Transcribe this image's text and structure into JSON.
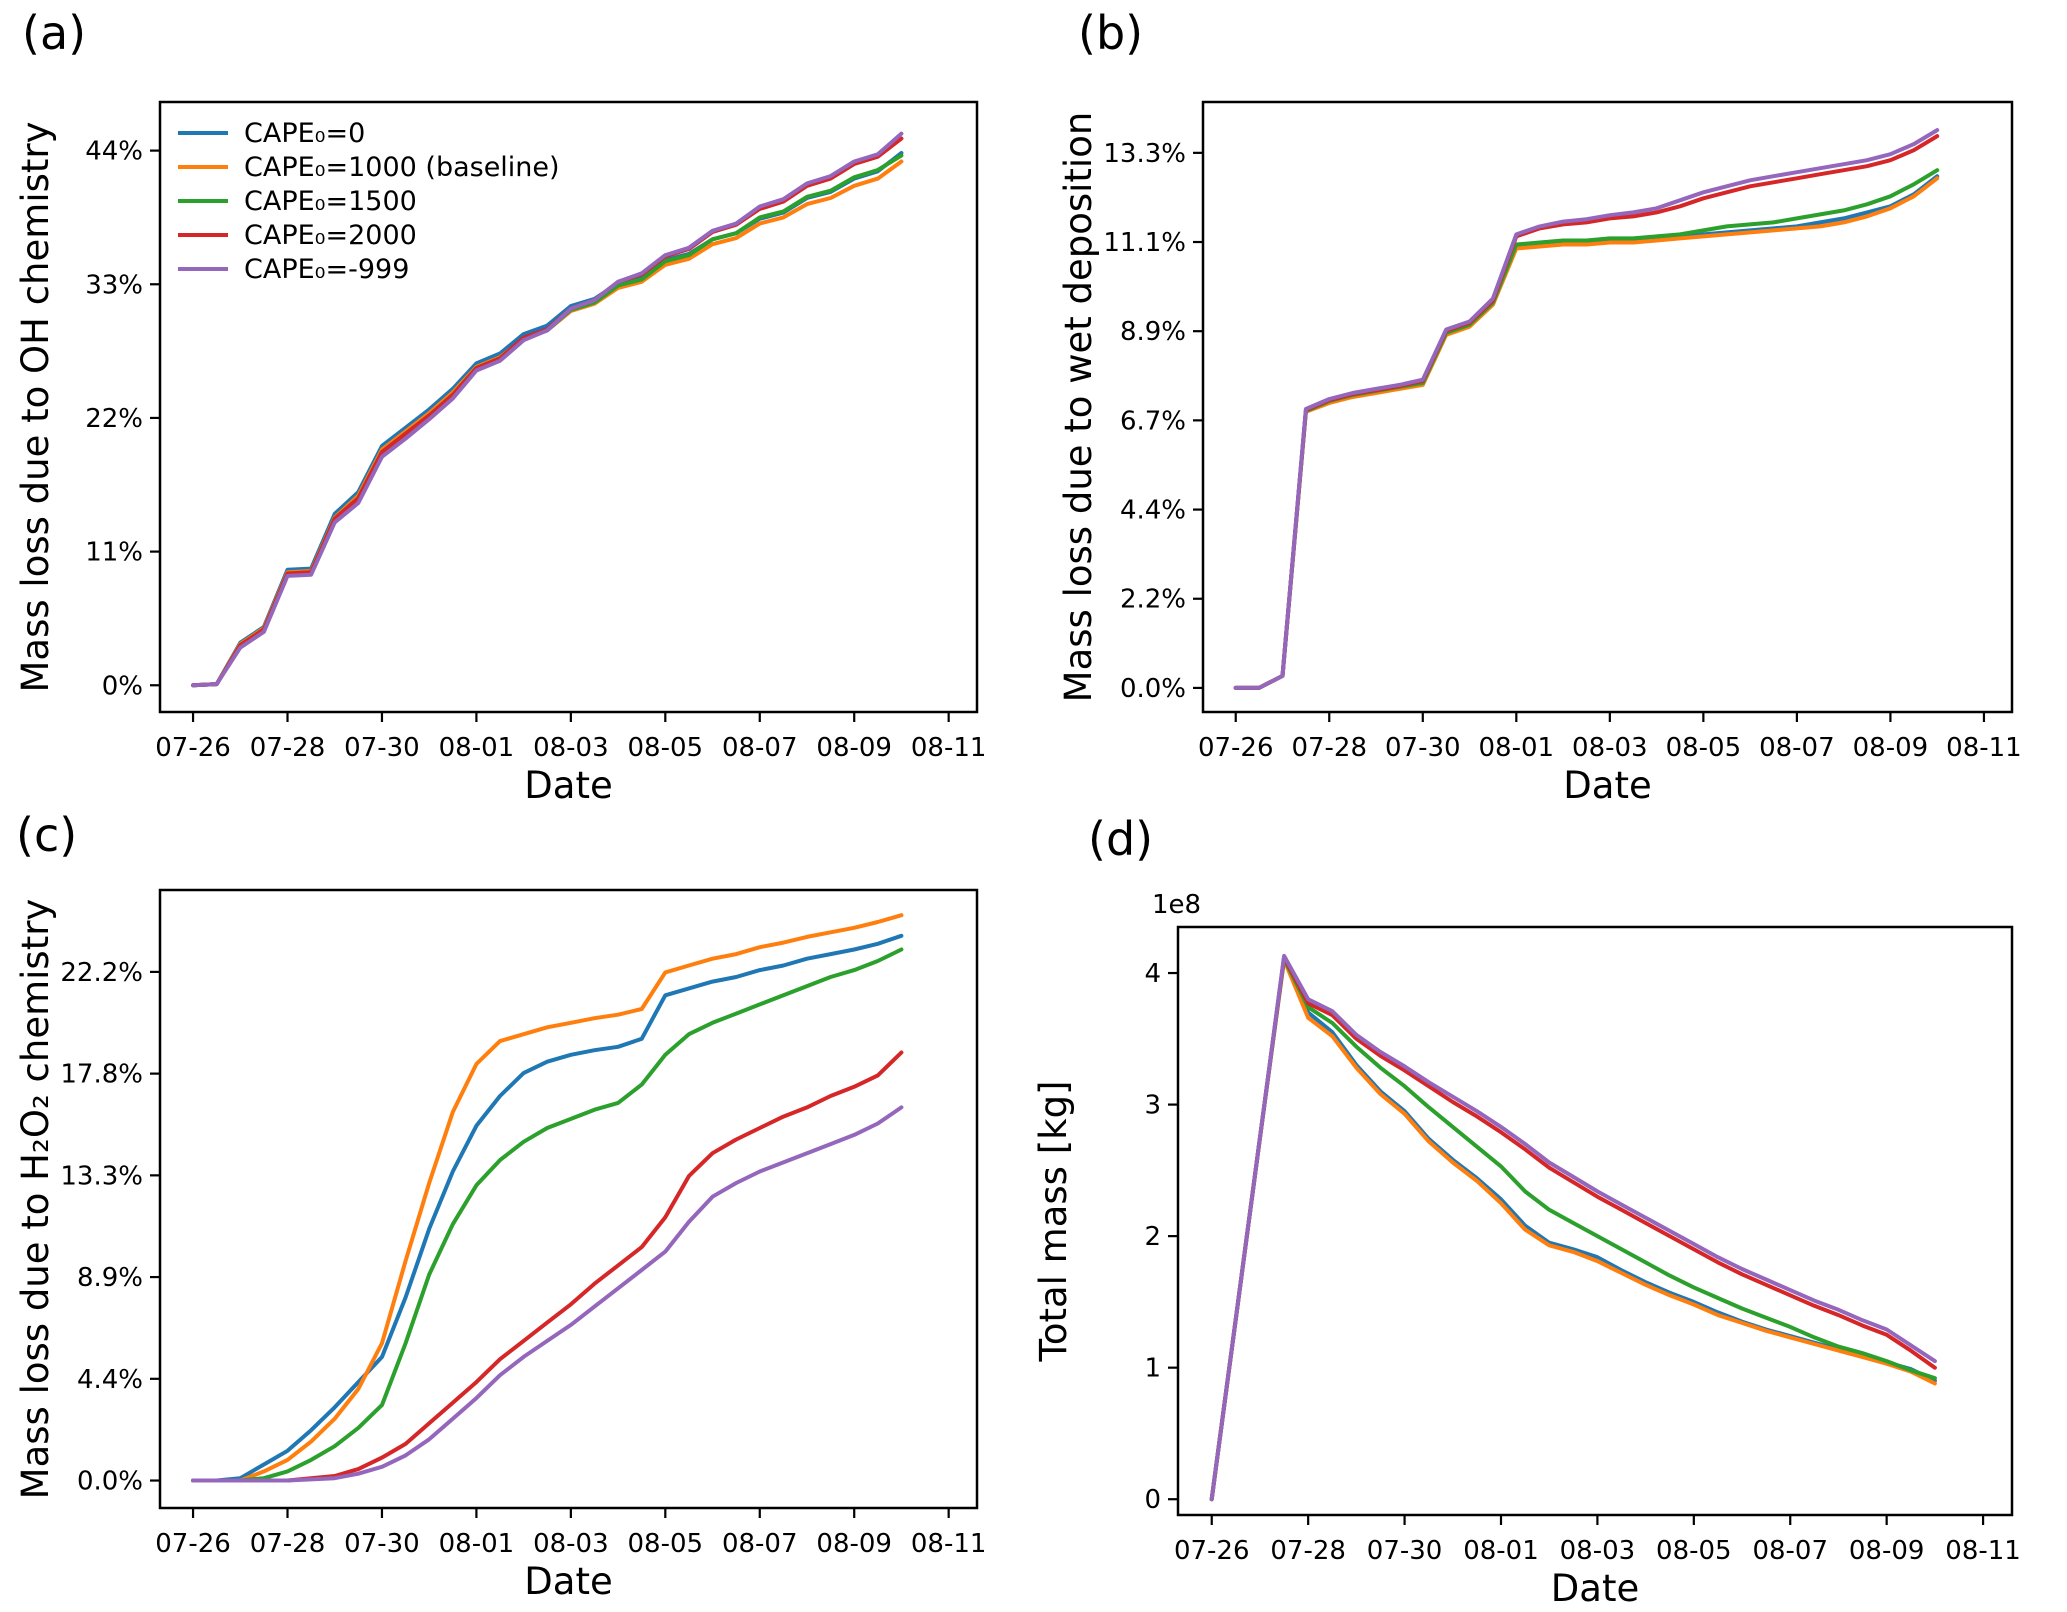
{
  "colors": {
    "blue": "#1f77b4",
    "orange": "#ff7f0e",
    "green": "#2ca02c",
    "red": "#d62728",
    "purple": "#9467bd",
    "axis": "#000000",
    "background": "#ffffff"
  },
  "chart_data": {
    "type": "line",
    "xlabel": "Date",
    "x_units": "days since 07-26",
    "x": [
      0,
      0.5,
      1,
      1.5,
      2,
      2.5,
      3,
      3.5,
      4,
      4.5,
      5,
      5.5,
      6,
      6.5,
      7,
      7.5,
      8,
      8.5,
      9,
      9.5,
      10,
      10.5,
      11,
      11.5,
      12,
      12.5,
      13,
      13.5,
      14,
      14.5,
      15
    ],
    "xlim": [
      -0.7,
      16.6
    ],
    "x_ticks": {
      "values": [
        0,
        2,
        4,
        6,
        8,
        10,
        12,
        14,
        16
      ],
      "labels": [
        "07-26",
        "07-28",
        "07-30",
        "08-01",
        "08-03",
        "08-05",
        "08-07",
        "08-09",
        "08-11"
      ]
    },
    "legend_entries": [
      "CAPE₀=0",
      "CAPE₀=1000 (baseline)",
      "CAPE₀=1500",
      "CAPE₀=2000",
      "CAPE₀=-999"
    ],
    "panels": [
      {
        "tag": "(a)",
        "ylabel": "Mass loss due to OH chemistry",
        "xlabel": "Date",
        "ylim": [
          -2.2,
          48
        ],
        "legend": true,
        "grid": false,
        "y_ticks": {
          "values": [
            0,
            11,
            22,
            33,
            44
          ],
          "labels": [
            "0%",
            "11%",
            "22%",
            "33%",
            "44%"
          ]
        },
        "series": [
          {
            "name": "CAPE₀=0",
            "color": "#1f77b4",
            "values": [
              0,
              0.1,
              3.5,
              4.8,
              9.5,
              9.6,
              14.1,
              15.9,
              19.7,
              21.2,
              22.7,
              24.4,
              26.5,
              27.3,
              28.9,
              29.6,
              31.2,
              31.8,
              33.1,
              33.6,
              35.0,
              35.5,
              36.7,
              37.2,
              38.4,
              38.9,
              40.1,
              40.6,
              41.7,
              42.3,
              43.8
            ]
          },
          {
            "name": "CAPE₀=1000 (baseline)",
            "color": "#ff7f0e",
            "values": [
              0,
              0.1,
              3.4,
              4.7,
              9.3,
              9.4,
              13.8,
              15.6,
              19.4,
              20.9,
              22.4,
              24.1,
              26.2,
              27.0,
              28.5,
              29.2,
              30.8,
              31.4,
              32.7,
              33.2,
              34.6,
              35.1,
              36.3,
              36.8,
              38.0,
              38.5,
              39.6,
              40.1,
              41.1,
              41.7,
              43.1
            ]
          },
          {
            "name": "CAPE₀=1500",
            "color": "#2ca02c",
            "values": [
              0,
              0.1,
              3.3,
              4.6,
              9.2,
              9.3,
              13.7,
              15.4,
              19.2,
              20.7,
              22.2,
              23.9,
              26.1,
              26.9,
              28.5,
              29.2,
              30.9,
              31.5,
              32.9,
              33.4,
              34.9,
              35.4,
              36.7,
              37.2,
              38.5,
              39.0,
              40.2,
              40.7,
              41.8,
              42.4,
              43.6
            ]
          },
          {
            "name": "CAPE₀=2000",
            "color": "#d62728",
            "values": [
              0,
              0.1,
              3.3,
              4.6,
              9.2,
              9.3,
              13.7,
              15.4,
              19.2,
              20.7,
              22.2,
              23.9,
              26.1,
              26.9,
              28.6,
              29.3,
              31.0,
              31.7,
              33.2,
              33.8,
              35.3,
              35.9,
              37.3,
              37.9,
              39.2,
              39.8,
              41.1,
              41.7,
              42.9,
              43.5,
              45.0
            ]
          },
          {
            "name": "CAPE₀=-999",
            "color": "#9467bd",
            "values": [
              0,
              0.1,
              3.1,
              4.4,
              9.0,
              9.1,
              13.4,
              15.0,
              18.8,
              20.3,
              21.9,
              23.6,
              25.9,
              26.7,
              28.4,
              29.2,
              31.0,
              31.7,
              33.2,
              33.9,
              35.4,
              36.0,
              37.4,
              38.0,
              39.4,
              40.0,
              41.3,
              41.9,
              43.1,
              43.7,
              45.4
            ]
          }
        ]
      },
      {
        "tag": "(b)",
        "ylabel": "Mass loss due to wet deposition",
        "xlabel": "Date",
        "ylim": [
          -0.6,
          14.6
        ],
        "legend": false,
        "grid": false,
        "y_ticks": {
          "values": [
            0,
            2.222,
            4.444,
            6.667,
            8.889,
            11.111,
            13.333
          ],
          "labels": [
            "0.0%",
            "2.2%",
            "4.4%",
            "6.7%",
            "8.9%",
            "11.1%",
            "13.3%"
          ]
        },
        "series": [
          {
            "name": "CAPE₀=0",
            "color": "#1f77b4",
            "values": [
              0,
              0,
              0.3,
              6.9,
              7.15,
              7.3,
              7.4,
              7.5,
              7.6,
              8.85,
              9.05,
              9.6,
              11.0,
              11.05,
              11.1,
              11.1,
              11.15,
              11.15,
              11.2,
              11.25,
              11.3,
              11.35,
              11.4,
              11.45,
              11.5,
              11.6,
              11.7,
              11.85,
              12.0,
              12.3,
              12.75
            ]
          },
          {
            "name": "CAPE₀=1000 (baseline)",
            "color": "#ff7f0e",
            "values": [
              0,
              0,
              0.3,
              6.88,
              7.1,
              7.25,
              7.35,
              7.45,
              7.55,
              8.8,
              9.0,
              9.55,
              10.95,
              11.0,
              11.05,
              11.05,
              11.1,
              11.1,
              11.15,
              11.2,
              11.25,
              11.3,
              11.35,
              11.4,
              11.45,
              11.5,
              11.6,
              11.75,
              11.95,
              12.25,
              12.7
            ]
          },
          {
            "name": "CAPE₀=1500",
            "color": "#2ca02c",
            "values": [
              0,
              0,
              0.3,
              6.9,
              7.15,
              7.3,
              7.4,
              7.5,
              7.6,
              8.85,
              9.05,
              9.6,
              11.05,
              11.1,
              11.15,
              11.15,
              11.2,
              11.2,
              11.25,
              11.3,
              11.4,
              11.5,
              11.55,
              11.6,
              11.7,
              11.8,
              11.9,
              12.05,
              12.25,
              12.55,
              12.9
            ]
          },
          {
            "name": "CAPE₀=2000",
            "color": "#d62728",
            "values": [
              0,
              0,
              0.3,
              6.92,
              7.17,
              7.32,
              7.42,
              7.52,
              7.65,
              8.9,
              9.1,
              9.65,
              11.25,
              11.45,
              11.55,
              11.6,
              11.7,
              11.75,
              11.85,
              12.0,
              12.2,
              12.35,
              12.5,
              12.6,
              12.7,
              12.8,
              12.9,
              13.0,
              13.15,
              13.4,
              13.75
            ]
          },
          {
            "name": "CAPE₀=-999",
            "color": "#9467bd",
            "values": [
              0,
              0,
              0.3,
              6.95,
              7.2,
              7.35,
              7.45,
              7.55,
              7.68,
              8.93,
              9.13,
              9.7,
              11.3,
              11.5,
              11.62,
              11.68,
              11.78,
              11.85,
              11.95,
              12.15,
              12.35,
              12.5,
              12.65,
              12.75,
              12.85,
              12.95,
              13.05,
              13.15,
              13.3,
              13.55,
              13.9
            ]
          }
        ]
      },
      {
        "tag": "(c)",
        "ylabel": "Mass loss due to H₂O₂ chemistry",
        "xlabel": "Date",
        "ylim": [
          -1.2,
          25.8
        ],
        "legend": false,
        "grid": false,
        "y_ticks": {
          "values": [
            0,
            4.444,
            8.889,
            13.333,
            17.778,
            22.222
          ],
          "labels": [
            "0.0%",
            "4.4%",
            "8.9%",
            "13.3%",
            "17.8%",
            "22.2%"
          ]
        },
        "series": [
          {
            "name": "CAPE₀=0",
            "color": "#1f77b4",
            "values": [
              0,
              0,
              0.1,
              0.7,
              1.3,
              2.2,
              3.2,
              4.3,
              5.4,
              8.0,
              11.0,
              13.5,
              15.5,
              16.8,
              17.8,
              18.3,
              18.6,
              18.8,
              18.95,
              19.3,
              21.2,
              21.5,
              21.8,
              22.0,
              22.3,
              22.5,
              22.8,
              23.0,
              23.2,
              23.45,
              23.8
            ]
          },
          {
            "name": "CAPE₀=1000 (baseline)",
            "color": "#ff7f0e",
            "values": [
              0,
              0,
              0,
              0.4,
              0.9,
              1.7,
              2.7,
              4.0,
              6.0,
              9.6,
              13.0,
              16.1,
              18.2,
              19.2,
              19.5,
              19.8,
              20.0,
              20.2,
              20.35,
              20.6,
              22.2,
              22.5,
              22.8,
              23.0,
              23.3,
              23.5,
              23.75,
              23.95,
              24.15,
              24.4,
              24.7
            ]
          },
          {
            "name": "CAPE₀=1500",
            "color": "#2ca02c",
            "values": [
              0,
              0,
              0,
              0.1,
              0.4,
              0.9,
              1.5,
              2.3,
              3.3,
              6.0,
              9.0,
              11.2,
              12.9,
              14.0,
              14.8,
              15.4,
              15.8,
              16.2,
              16.5,
              17.3,
              18.6,
              19.5,
              20.0,
              20.4,
              20.8,
              21.2,
              21.6,
              22.0,
              22.3,
              22.7,
              23.2
            ]
          },
          {
            "name": "CAPE₀=2000",
            "color": "#d62728",
            "values": [
              0,
              0,
              0,
              0,
              0,
              0.1,
              0.2,
              0.5,
              1.0,
              1.6,
              2.5,
              3.4,
              4.3,
              5.3,
              6.1,
              6.9,
              7.7,
              8.6,
              9.4,
              10.2,
              11.5,
              13.3,
              14.3,
              14.9,
              15.4,
              15.9,
              16.3,
              16.8,
              17.2,
              17.7,
              18.7
            ]
          },
          {
            "name": "CAPE₀=-999",
            "color": "#9467bd",
            "values": [
              0,
              0,
              0,
              0,
              0,
              0.05,
              0.1,
              0.3,
              0.6,
              1.1,
              1.8,
              2.7,
              3.6,
              4.6,
              5.4,
              6.1,
              6.8,
              7.6,
              8.4,
              9.2,
              10.0,
              11.3,
              12.4,
              13.0,
              13.5,
              13.9,
              14.3,
              14.7,
              15.1,
              15.6,
              16.3
            ]
          }
        ]
      },
      {
        "tag": "(d)",
        "ylabel": "Total mass [kg]",
        "xlabel": "Date",
        "ylim": [
          -0.12,
          4.35
        ],
        "legend": false,
        "grid": false,
        "offset_text": "1e8",
        "y_units": "1e8 kg",
        "y_ticks": {
          "values": [
            0,
            1,
            2,
            3,
            4
          ],
          "labels": [
            "0",
            "1",
            "2",
            "3",
            "4"
          ]
        },
        "series": [
          {
            "name": "CAPE₀=0",
            "color": "#1f77b4",
            "values": [
              0,
              1.37,
              2.75,
              4.12,
              3.7,
              3.55,
              3.3,
              3.1,
              2.95,
              2.74,
              2.58,
              2.44,
              2.28,
              2.08,
              1.95,
              1.9,
              1.84,
              1.74,
              1.65,
              1.57,
              1.5,
              1.42,
              1.35,
              1.29,
              1.24,
              1.19,
              1.14,
              1.09,
              1.04,
              0.99,
              0.9
            ]
          },
          {
            "name": "CAPE₀=1000 (baseline)",
            "color": "#ff7f0e",
            "values": [
              0,
              1.37,
              2.75,
              4.1,
              3.66,
              3.52,
              3.28,
              3.08,
              2.93,
              2.72,
              2.56,
              2.42,
              2.25,
              2.05,
              1.93,
              1.88,
              1.81,
              1.72,
              1.63,
              1.55,
              1.48,
              1.4,
              1.34,
              1.28,
              1.23,
              1.18,
              1.13,
              1.08,
              1.03,
              0.97,
              0.88
            ]
          },
          {
            "name": "CAPE₀=1500",
            "color": "#2ca02c",
            "values": [
              0,
              1.37,
              2.75,
              4.11,
              3.74,
              3.62,
              3.44,
              3.28,
              3.14,
              2.98,
              2.83,
              2.68,
              2.53,
              2.34,
              2.2,
              2.1,
              2.0,
              1.9,
              1.8,
              1.7,
              1.61,
              1.53,
              1.45,
              1.38,
              1.31,
              1.23,
              1.16,
              1.11,
              1.05,
              0.98,
              0.92
            ]
          },
          {
            "name": "CAPE₀=2000",
            "color": "#d62728",
            "values": [
              0,
              1.37,
              2.75,
              4.12,
              3.77,
              3.68,
              3.5,
              3.37,
              3.26,
              3.14,
              3.02,
              2.91,
              2.79,
              2.66,
              2.52,
              2.41,
              2.3,
              2.2,
              2.1,
              2.0,
              1.9,
              1.8,
              1.71,
              1.63,
              1.55,
              1.47,
              1.4,
              1.32,
              1.25,
              1.13,
              1.0
            ]
          },
          {
            "name": "CAPE₀=-999",
            "color": "#9467bd",
            "values": [
              0,
              1.37,
              2.75,
              4.13,
              3.8,
              3.71,
              3.53,
              3.4,
              3.29,
              3.17,
              3.06,
              2.95,
              2.83,
              2.7,
              2.56,
              2.45,
              2.34,
              2.24,
              2.14,
              2.04,
              1.94,
              1.84,
              1.75,
              1.67,
              1.59,
              1.51,
              1.44,
              1.36,
              1.29,
              1.17,
              1.05
            ]
          }
        ]
      }
    ]
  }
}
